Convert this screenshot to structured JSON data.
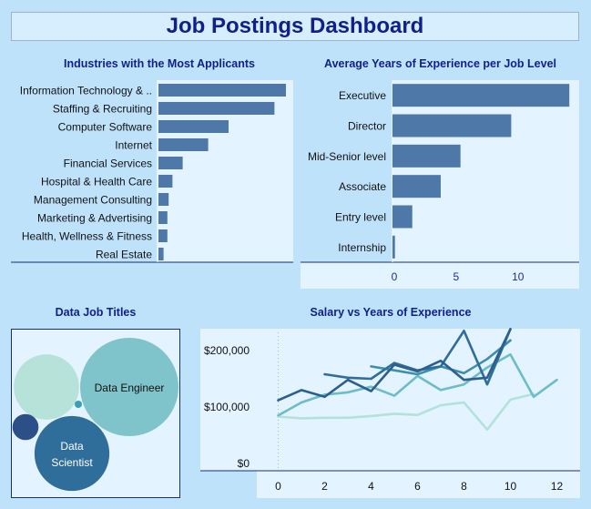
{
  "dashboard": {
    "title": "Job Postings Dashboard"
  },
  "colors": {
    "bar": "#4e78a8",
    "panel_bg": "#e3f3ff",
    "page_bg": "#bfe2fb",
    "title_color": "#101f8a",
    "bubble_light": "#b6e2da",
    "bubble_mid": "#7fc4ca",
    "bubble_dark": "#2f6d9a",
    "bubble_navy": "#2b4f86"
  },
  "panels": {
    "industries_title": "Industries with the Most Applicants",
    "experience_title": "Average Years of Experience per Job Level",
    "bubbles_title": "Data Job Titles",
    "salary_title": "Salary vs Years of Experience"
  },
  "chart_data": [
    {
      "type": "bar",
      "orientation": "horizontal",
      "title": "Industries with the Most Applicants",
      "categories": [
        "Information Technology & ..",
        "Staffing & Recruiting",
        "Computer Software",
        "Internet",
        "Financial Services",
        "Hospital & Health Care",
        "Management Consulting",
        "Marketing & Advertising",
        "Health, Wellness & Fitness",
        "Real Estate"
      ],
      "values": [
        100,
        91,
        55,
        39,
        19,
        11,
        8,
        7,
        7,
        4
      ],
      "xlim": [
        0,
        100
      ],
      "grid": false
    },
    {
      "type": "bar",
      "orientation": "horizontal",
      "title": "Average Years of Experience per Job Level",
      "categories": [
        "Executive",
        "Director",
        "Mid-Senior level",
        "Associate",
        "Entry level",
        "Internship"
      ],
      "values": [
        14.3,
        9.6,
        5.5,
        3.9,
        1.6,
        0.2
      ],
      "xticks": [
        "0",
        "5",
        "10"
      ],
      "xlim": [
        0,
        14.8
      ],
      "grid": false
    },
    {
      "type": "bubble",
      "title": "Data Job Titles",
      "bubbles": [
        {
          "label": "Data Engineer",
          "size": 100,
          "color": "#7fc4ca"
        },
        {
          "label": "",
          "size": 44,
          "color": "#b6e2da"
        },
        {
          "label": "Data Scientist",
          "size": 58,
          "color": "#2f6d9a"
        },
        {
          "label": "",
          "size": 7,
          "color": "#2b4f86"
        },
        {
          "label": "",
          "size": 0.4,
          "color": "#3aa0b0"
        }
      ]
    },
    {
      "type": "line",
      "title": "Salary vs Years of Experience",
      "xticks": [
        "0",
        "2",
        "4",
        "6",
        "8",
        "10",
        "12"
      ],
      "yticks": [
        "$0",
        "$100,000",
        "$200,000"
      ],
      "xlim": [
        -1,
        13
      ],
      "ylim": [
        0,
        250000
      ],
      "series": [
        {
          "color": "#2d5f8e",
          "x": [
            0,
            1,
            2,
            3,
            4,
            5,
            6,
            7,
            8,
            9,
            10
          ],
          "y": [
            112000,
            130000,
            118000,
            148000,
            128000,
            175000,
            163000,
            182000,
            148000,
            152000,
            238000
          ]
        },
        {
          "color": "#2f6d9a",
          "x": [
            2,
            3,
            4,
            5,
            6,
            7,
            8,
            9,
            10
          ],
          "y": [
            158000,
            152000,
            150000,
            178000,
            165000,
            172000,
            235000,
            140000,
            238000
          ]
        },
        {
          "color": "#3f8fac",
          "x": [
            4,
            5,
            6,
            7,
            8,
            9,
            10
          ],
          "y": [
            172000,
            165000,
            158000,
            172000,
            160000,
            185000,
            218000
          ]
        },
        {
          "color": "#6dbcc6",
          "x": [
            0,
            1,
            2,
            3,
            4,
            5,
            6,
            7,
            8,
            9,
            10,
            11,
            12
          ],
          "y": [
            85000,
            108000,
            122000,
            126000,
            136000,
            120000,
            155000,
            130000,
            140000,
            170000,
            193000,
            118000,
            148000
          ]
        },
        {
          "color": "#b3e2d9",
          "x": [
            0,
            1,
            2,
            3,
            4,
            5,
            6,
            7,
            8,
            9,
            10,
            11
          ],
          "y": [
            83000,
            80000,
            81000,
            81000,
            84000,
            88000,
            86000,
            103000,
            108000,
            60000,
            113000,
            123000
          ]
        }
      ]
    }
  ]
}
